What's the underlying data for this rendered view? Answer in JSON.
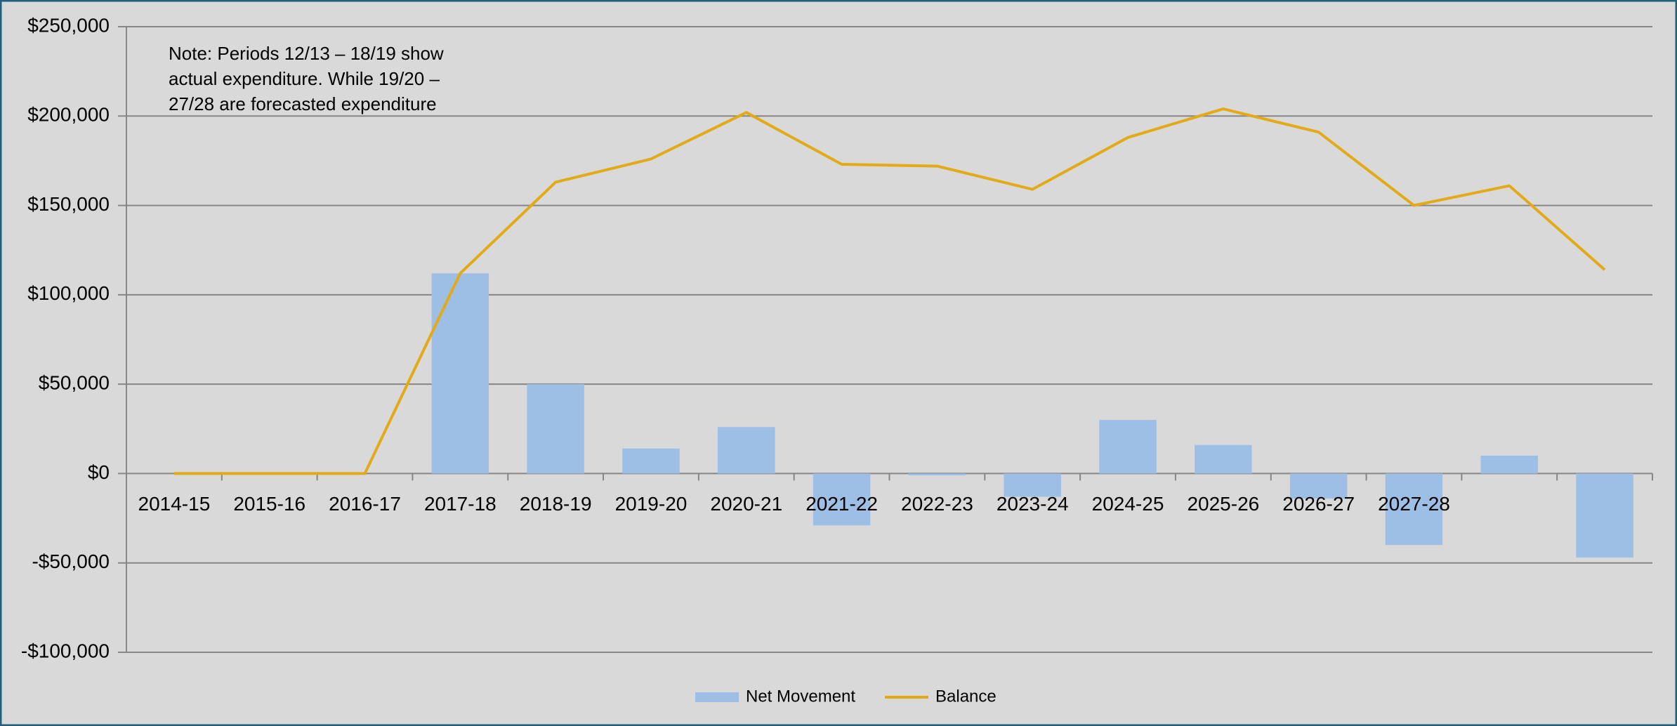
{
  "chart_data": {
    "type": "bar",
    "annotation": [
      "Note: Periods 12/13 – 18/19 show",
      "actual expenditure. While 19/20 –",
      "27/28 are forecasted  expenditure"
    ],
    "categories": [
      "2014-15",
      "2015-16",
      "2016-17",
      "2017-18",
      "2018-19",
      "2019-20",
      "2020-21",
      "2021-22",
      "2022-23",
      "2023-24",
      "2024-25",
      "2025-26",
      "2026-27",
      "2027-28",
      null,
      null
    ],
    "series": [
      {
        "name": "Net Movement",
        "type": "bar",
        "color": "#9dbfe6",
        "values": [
          0,
          0,
          0,
          112000,
          50000,
          14000,
          26000,
          -29000,
          -1000,
          -13000,
          30000,
          16000,
          -14000,
          -40000,
          10000,
          -47000
        ]
      },
      {
        "name": "Balance",
        "type": "line",
        "color": "#e2aa16",
        "values": [
          0,
          0,
          0,
          112000,
          163000,
          176000,
          202000,
          173000,
          172000,
          159000,
          188000,
          204000,
          191000,
          150000,
          161000,
          114000
        ]
      }
    ],
    "ylim": [
      -100000,
      250000
    ],
    "yticks": [
      {
        "value": -100000,
        "label": "-$100,000"
      },
      {
        "value": -50000,
        "label": "-$50,000"
      },
      {
        "value": 0,
        "label": "$0"
      },
      {
        "value": 50000,
        "label": "$50,000"
      },
      {
        "value": 100000,
        "label": "$100,000"
      },
      {
        "value": 150000,
        "label": "$150,000"
      },
      {
        "value": 200000,
        "label": "$200,000"
      },
      {
        "value": 250000,
        "label": "$250,000"
      }
    ],
    "grid": true,
    "legend": "bottom"
  }
}
